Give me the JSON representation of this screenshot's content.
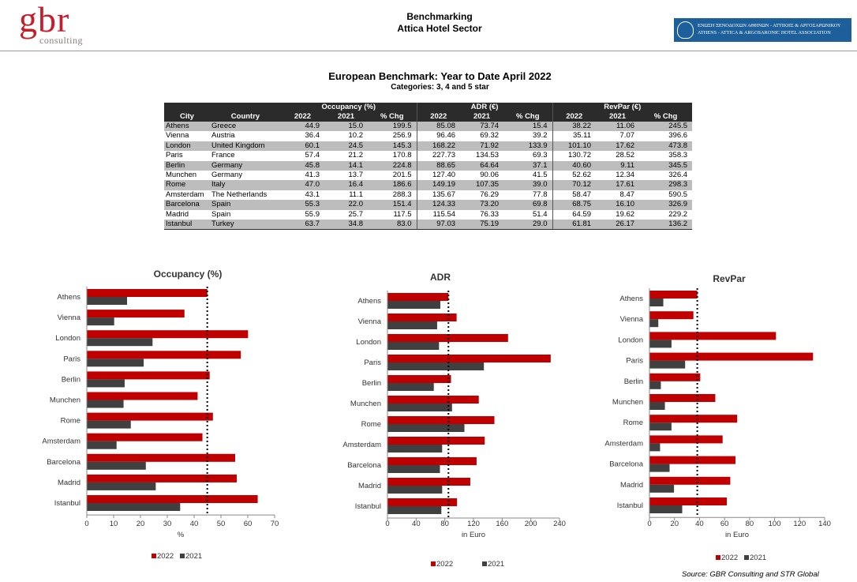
{
  "header": {
    "logo_text": "gbr",
    "logo_sub": "consulting",
    "title_line1": "Benchmarking",
    "title_line2": "Attica Hotel Sector",
    "association_line1": "ΕΝΩΣΗ ΞΕΝΟΔΟΧΩΝ ΑΘΗΝΩΝ - ΑΤΤΙΚΗΣ & ΑΡΓΟΣΑΡΩΝΙΚΟΥ",
    "association_line2": "ATHENS - ATTICA & ARGOSARONIC HOTEL ASSOCIATION"
  },
  "benchmark": {
    "title": "European Benchmark: Year to Date April 2022",
    "subtitle": "Categories: 3, 4 and 5 star"
  },
  "table": {
    "group_headers": [
      "Occupancy (%)",
      "ADR (€)",
      "RevPar (€)"
    ],
    "columns": [
      "City",
      "Country",
      "2022",
      "2021",
      "% Chg",
      "2022",
      "2021",
      "% Chg",
      "2022",
      "2021",
      "% Chg"
    ],
    "rows": [
      [
        "Athens",
        "Greece",
        "44.9",
        "15.0",
        "199.5",
        "85.08",
        "73.74",
        "15.4",
        "38.22",
        "11.06",
        "245.5"
      ],
      [
        "Vienna",
        "Austria",
        "36.4",
        "10.2",
        "256.9",
        "96.46",
        "69.32",
        "39.2",
        "35.11",
        "7.07",
        "396.6"
      ],
      [
        "London",
        "United Kingdom",
        "60.1",
        "24.5",
        "145.3",
        "168.22",
        "71.92",
        "133.9",
        "101.10",
        "17.62",
        "473.8"
      ],
      [
        "Paris",
        "France",
        "57.4",
        "21.2",
        "170.8",
        "227.73",
        "134.53",
        "69.3",
        "130.72",
        "28.52",
        "358.3"
      ],
      [
        "Berlin",
        "Germany",
        "45.8",
        "14.1",
        "224.8",
        "88.65",
        "64.64",
        "37.1",
        "40.60",
        "9.11",
        "345.5"
      ],
      [
        "Munchen",
        "Germany",
        "41.3",
        "13.7",
        "201.5",
        "127.40",
        "90.06",
        "41.5",
        "52.62",
        "12.34",
        "326.4"
      ],
      [
        "Rome",
        "Italy",
        "47.0",
        "16.4",
        "186.6",
        "149.19",
        "107.35",
        "39.0",
        "70.12",
        "17.61",
        "298.3"
      ],
      [
        "Amsterdam",
        "The Netherlands",
        "43.1",
        "11.1",
        "288.3",
        "135.67",
        "76.29",
        "77.8",
        "58.47",
        "8.47",
        "590.5"
      ],
      [
        "Barcelona",
        "Spain",
        "55.3",
        "22.0",
        "151.4",
        "124.33",
        "73.20",
        "69.8",
        "68.75",
        "16.10",
        "326.9"
      ],
      [
        "Madrid",
        "Spain",
        "55.9",
        "25.7",
        "117.5",
        "115.54",
        "76.33",
        "51.4",
        "64.59",
        "19.62",
        "229.2"
      ],
      [
        "Istanbul",
        "Turkey",
        "63.7",
        "34.8",
        "83.0",
        "97.03",
        "75.19",
        "29.0",
        "61.81",
        "26.17",
        "136.2"
      ]
    ]
  },
  "colors": {
    "series_2022": "#c00000",
    "series_2021": "#404040",
    "reference_line": "#000000"
  },
  "chart_data": [
    {
      "type": "bar",
      "orientation": "horizontal",
      "title": "Occupancy (%)",
      "xlabel": "%",
      "categories": [
        "Athens",
        "Vienna",
        "London",
        "Paris",
        "Berlin",
        "Munchen",
        "Rome",
        "Amsterdam",
        "Barcelona",
        "Madrid",
        "Istanbul"
      ],
      "series": [
        {
          "name": "2022",
          "values": [
            44.9,
            36.4,
            60.1,
            57.4,
            45.8,
            41.3,
            47.0,
            43.1,
            55.3,
            55.9,
            63.7
          ]
        },
        {
          "name": "2021",
          "values": [
            15.0,
            10.2,
            24.5,
            21.2,
            14.1,
            13.7,
            16.4,
            11.1,
            22.0,
            25.7,
            34.8
          ]
        }
      ],
      "xlim": [
        0,
        70
      ],
      "xticks": [
        0,
        10,
        20,
        30,
        40,
        50,
        60,
        70
      ],
      "reference_line": 44.9,
      "legend": "bottom"
    },
    {
      "type": "bar",
      "orientation": "horizontal",
      "title": "ADR",
      "xlabel": "in Euro",
      "categories": [
        "Athens",
        "Vienna",
        "London",
        "Paris",
        "Berlin",
        "Munchen",
        "Rome",
        "Amsterdam",
        "Barcelona",
        "Madrid",
        "Istanbul"
      ],
      "series": [
        {
          "name": "2022",
          "values": [
            85.08,
            96.46,
            168.22,
            227.73,
            88.65,
            127.4,
            149.19,
            135.67,
            124.33,
            115.54,
            97.03
          ]
        },
        {
          "name": "2021",
          "values": [
            73.74,
            69.32,
            71.92,
            134.53,
            64.64,
            90.06,
            107.35,
            76.29,
            73.2,
            76.33,
            75.19
          ]
        }
      ],
      "xlim": [
        0,
        240
      ],
      "xticks": [
        0,
        40,
        80,
        120,
        160,
        200,
        240
      ],
      "reference_line": 85.08,
      "legend": "bottom"
    },
    {
      "type": "bar",
      "orientation": "horizontal",
      "title": "RevPar",
      "xlabel": "in Euro",
      "categories": [
        "Athens",
        "Vienna",
        "London",
        "Paris",
        "Berlin",
        "Munchen",
        "Rome",
        "Amsterdam",
        "Barcelona",
        "Madrid",
        "Istanbul"
      ],
      "series": [
        {
          "name": "2022",
          "values": [
            38.22,
            35.11,
            101.1,
            130.72,
            40.6,
            52.62,
            70.12,
            58.47,
            68.75,
            64.59,
            61.81
          ]
        },
        {
          "name": "2021",
          "values": [
            11.06,
            7.07,
            17.62,
            28.52,
            9.11,
            12.34,
            17.61,
            8.47,
            16.1,
            19.62,
            26.17
          ]
        }
      ],
      "xlim": [
        0,
        140
      ],
      "xticks": [
        0,
        20,
        40,
        60,
        80,
        100,
        120,
        140
      ],
      "reference_line": 38.22,
      "legend": "bottom"
    }
  ],
  "footer": {
    "source": "Source: GBR Consulting and STR Global"
  }
}
